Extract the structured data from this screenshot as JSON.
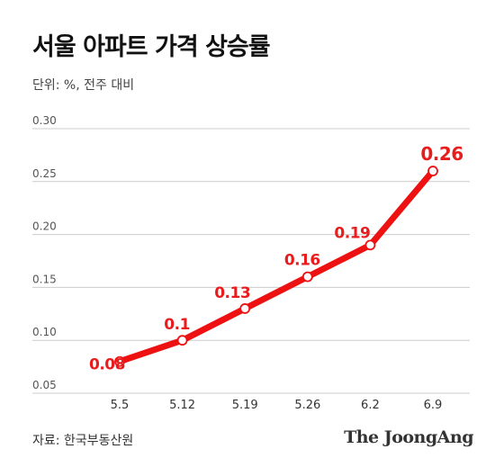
{
  "title": "서울 아파트 가격 상승률",
  "unit_note": "단위: %, 전주 대비",
  "source": "자료: 한국부동산원",
  "brand": "The JoongAng",
  "colors": {
    "line": "#ee1111",
    "grid": "#cccccc",
    "axis_text": "#555555",
    "label": "#e81c1c"
  },
  "chart_data": {
    "type": "line",
    "categories": [
      "5.5",
      "5.12",
      "5.19",
      "5.26",
      "6.2",
      "6.9"
    ],
    "series": [
      {
        "values": [
          0.08,
          0.1,
          0.13,
          0.16,
          0.19,
          0.26
        ]
      }
    ],
    "data_labels": [
      "0.08",
      "0.1",
      "0.13",
      "0.16",
      "0.19",
      "0.26"
    ],
    "yticks": [
      "0.30",
      "0.25",
      "0.20",
      "0.15",
      "0.10",
      "0.05"
    ],
    "ytick_values": [
      0.3,
      0.25,
      0.2,
      0.15,
      0.1,
      0.05
    ],
    "ylim": [
      0.05,
      0.3
    ],
    "grid": true,
    "xlabel": "",
    "ylabel": ""
  }
}
